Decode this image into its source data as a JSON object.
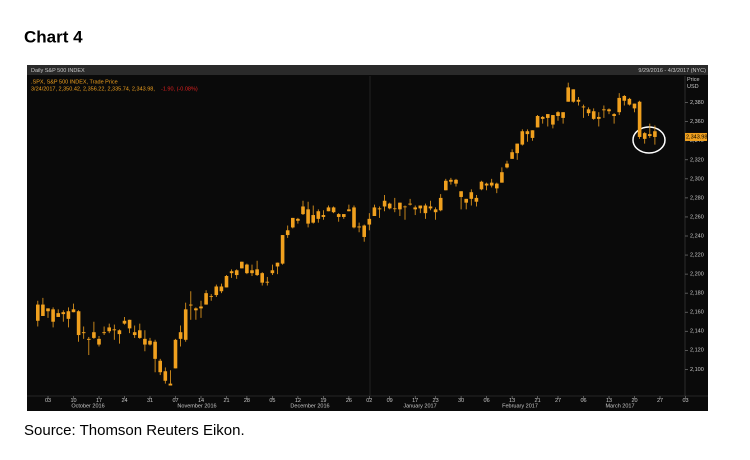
{
  "title": "Chart 4",
  "source": "Source: Thomson Reuters Eikon.",
  "chart_data": {
    "type": "candlestick",
    "header": "Daily S&P 500 INDEX",
    "date_range": "9/29/2016 - 4/3/2017 (NYC)",
    "axis_label": "Price USD",
    "legend_values": "3/24/2017, 2,350.42, 2,356.22, 2,335.74, 2,343.98,",
    "legend_change": "-1.90, (-0.08%)",
    "last_price": {
      "value": 2343.98,
      "label": "2,343.98"
    },
    "months": [
      "October 2016",
      "November 2016",
      "December 2016",
      "January 2017",
      "February 2017",
      "March 2017"
    ],
    "categories": [
      null,
      null,
      "03",
      null,
      null,
      null,
      null,
      "10",
      null,
      null,
      null,
      null,
      "17",
      null,
      null,
      null,
      null,
      "24",
      null,
      null,
      null,
      null,
      "31",
      null,
      null,
      null,
      null,
      "07",
      null,
      null,
      null,
      null,
      "14",
      null,
      null,
      null,
      null,
      "21",
      null,
      null,
      null,
      "28",
      null,
      null,
      null,
      null,
      "05",
      null,
      null,
      null,
      null,
      "12",
      null,
      null,
      null,
      null,
      "19",
      null,
      null,
      null,
      null,
      "26",
      null,
      null,
      null,
      "02",
      null,
      null,
      null,
      "09",
      null,
      null,
      null,
      null,
      "17",
      null,
      null,
      null,
      "23",
      null,
      null,
      null,
      null,
      "30",
      null,
      null,
      null,
      null,
      "06",
      null,
      null,
      null,
      null,
      "13",
      null,
      null,
      null,
      null,
      "21",
      null,
      null,
      null,
      "27",
      null,
      null,
      null,
      null,
      "06",
      null,
      null,
      null,
      null,
      "13",
      null,
      null,
      null,
      null,
      "20",
      null,
      null,
      null,
      null,
      "27",
      null,
      null,
      null,
      null,
      "03"
    ],
    "series": [
      {
        "name": ".SPX, S&P 500 INDEX, Trade Price",
        "color": "#f0a01e",
        "open": [
          2168,
          2156,
          2164,
          2163,
          2155,
          2158,
          2161,
          2160,
          2161,
          2138,
          2131,
          2139,
          2132,
          2138,
          2140,
          2142,
          2137,
          2148,
          2152,
          2136,
          2141,
          2132,
          2130,
          2129,
          2109,
          2098,
          2083,
          2101,
          2132,
          2131,
          2168,
          2162,
          2166,
          2168,
          2177,
          2178,
          2187,
          2186,
          2201,
          2199,
          2206,
          2210,
          2201,
          2205,
          2201,
          2191,
          2201,
          2208,
          2211,
          2241,
          2249,
          2258,
          2263,
          2268,
          2254,
          2266,
          2260,
          2266,
          2270,
          2263,
          2260,
          2266,
          2270,
          2250,
          2251,
          2252,
          2261,
          2268,
          2271,
          2274,
          2269,
          2268,
          2271,
          2273,
          2270,
          2269,
          2272,
          2269,
          2268,
          2267,
          2288,
          2299,
          2299,
          2287,
          2275,
          2286,
          2276,
          2289,
          2295,
          2296,
          2290,
          2296,
          2312,
          2321,
          2327,
          2336,
          2350,
          2343,
          2354,
          2365,
          2368,
          2357,
          2366,
          2370,
          2381,
          2394,
          2381,
          2376,
          2373,
          2371,
          2363,
          2372,
          2371,
          2368,
          2370,
          2387,
          2384,
          2379,
          2381,
          2342,
          2347,
          2350,
          null,
          null,
          null,
          null,
          null,
          null
        ],
        "high": [
          2172,
          2175,
          2164,
          2165,
          2163,
          2162,
          2165,
          2169,
          2162,
          2145,
          2134,
          2150,
          2135,
          2145,
          2148,
          2147,
          2142,
          2155,
          2152,
          2146,
          2148,
          2141,
          2133,
          2131,
          2111,
          2102,
          2099,
          2132,
          2146,
          2170,
          2182,
          2165,
          2172,
          2183,
          2179,
          2189,
          2190,
          2199,
          2205,
          2205,
          2213,
          2211,
          2210,
          2214,
          2202,
          2197,
          2210,
          2212,
          2241,
          2251,
          2259,
          2259,
          2277,
          2276,
          2272,
          2268,
          2267,
          2272,
          2271,
          2264,
          2263,
          2273,
          2272,
          2254,
          2252,
          2264,
          2273,
          2271,
          2283,
          2275,
          2280,
          2275,
          2272,
          2279,
          2272,
          2272,
          2274,
          2277,
          2270,
          2284,
          2300,
          2301,
          2300,
          2287,
          2279,
          2289,
          2283,
          2298,
          2296,
          2300,
          2296,
          2312,
          2319,
          2331,
          2337,
          2352,
          2352,
          2351,
          2367,
          2366,
          2368,
          2367,
          2371,
          2370,
          2401,
          2394,
          2386,
          2378,
          2375,
          2374,
          2370,
          2377,
          2374,
          2369,
          2390,
          2388,
          2385,
          2379,
          2382,
          2349,
          2358,
          2356,
          null,
          null,
          null,
          null,
          null,
          null
        ],
        "low": [
          2145,
          2156,
          2154,
          2144,
          2155,
          2150,
          2144,
          2160,
          2129,
          2132,
          2115,
          2132,
          2124,
          2136,
          2138,
          2131,
          2127,
          2147,
          2138,
          2133,
          2132,
          2119,
          2125,
          2097,
          2094,
          2085,
          2083,
          2101,
          2124,
          2129,
          2152,
          2152,
          2154,
          2168,
          2172,
          2176,
          2180,
          2186,
          2196,
          2195,
          2206,
          2200,
          2198,
          2198,
          2188,
          2188,
          2199,
          2200,
          2210,
          2238,
          2248,
          2253,
          2262,
          2249,
          2253,
          2254,
          2257,
          2266,
          2264,
          2255,
          2258,
          2266,
          2248,
          2244,
          2234,
          2246,
          2261,
          2259,
          2266,
          2268,
          2265,
          2261,
          2257,
          2272,
          2262,
          2264,
          2258,
          2267,
          2257,
          2266,
          2288,
          2294,
          2292,
          2268,
          2268,
          2272,
          2271,
          2288,
          2288,
          2291,
          2285,
          2296,
          2311,
          2321,
          2320,
          2335,
          2339,
          2340,
          2354,
          2358,
          2355,
          2353,
          2361,
          2358,
          2381,
          2380,
          2377,
          2364,
          2366,
          2362,
          2355,
          2364,
          2368,
          2358,
          2367,
          2377,
          2377,
          2370,
          2342,
          2337,
          2343,
          2336,
          null,
          null,
          null,
          null,
          null,
          null
        ],
        "close": [
          2151,
          2168,
          2161,
          2150,
          2159,
          2160,
          2153,
          2163,
          2136,
          2139,
          2132,
          2133,
          2126,
          2139,
          2144,
          2141,
          2141,
          2151,
          2143,
          2139,
          2133,
          2126,
          2126,
          2111,
          2097,
          2088,
          2085,
          2131,
          2139,
          2163,
          2167,
          2164,
          2164,
          2180,
          2177,
          2187,
          2182,
          2198,
          2203,
          2204,
          2213,
          2201,
          2204,
          2199,
          2191,
          2192,
          2204,
          2212,
          2241,
          2246,
          2259,
          2256,
          2271,
          2253,
          2262,
          2258,
          2262,
          2270,
          2265,
          2260,
          2263,
          2268,
          2249,
          2249,
          2239,
          2258,
          2270,
          2269,
          2277,
          2269,
          2269,
          2275,
          2271,
          2274,
          2268,
          2272,
          2264,
          2271,
          2265,
          2280,
          2298,
          2297,
          2295,
          2281,
          2279,
          2279,
          2280,
          2297,
          2293,
          2293,
          2295,
          2307,
          2316,
          2328,
          2337,
          2350,
          2347,
          2351,
          2366,
          2363,
          2364,
          2367,
          2370,
          2364,
          2396,
          2381,
          2383,
          2375,
          2369,
          2363,
          2365,
          2373,
          2373,
          2366,
          2385,
          2382,
          2378,
          2374,
          2344,
          2348,
          2345,
          2344,
          null,
          null,
          null,
          null,
          null,
          null
        ]
      }
    ],
    "ylim": [
      2072,
      2408
    ],
    "yticks": [
      {
        "value": 2100,
        "label": "2,100"
      },
      {
        "value": 2120,
        "label": "2,120"
      },
      {
        "value": 2140,
        "label": "2,140"
      },
      {
        "value": 2160,
        "label": "2,160"
      },
      {
        "value": 2180,
        "label": "2,180"
      },
      {
        "value": 2200,
        "label": "2,200"
      },
      {
        "value": 2220,
        "label": "2,220"
      },
      {
        "value": 2240,
        "label": "2,240"
      },
      {
        "value": 2260,
        "label": "2,260"
      },
      {
        "value": 2280,
        "label": "2,280"
      },
      {
        "value": 2300,
        "label": "2,300"
      },
      {
        "value": 2320,
        "label": "2,320"
      },
      {
        "value": 2340,
        "label": "2,340"
      },
      {
        "value": 2360,
        "label": "2,360"
      },
      {
        "value": 2380,
        "label": "2,380"
      }
    ]
  }
}
